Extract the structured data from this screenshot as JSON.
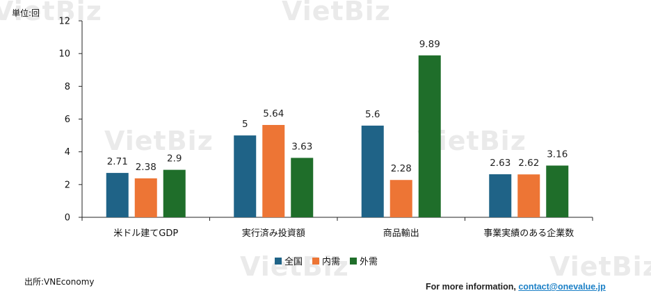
{
  "watermark_text": "VietBiz",
  "unit_label": "単位:回",
  "source_label": "出所:VNEconomy",
  "footer": {
    "prefix": "For more information, ",
    "link": "contact@onevalue.jp"
  },
  "chart_data": {
    "type": "bar",
    "categories": [
      "米ドル建てGDP",
      "実行済み投資額",
      "商品輸出",
      "事業実績のある企業数"
    ],
    "series": [
      {
        "name": "全国",
        "color": "#1f6387",
        "values": [
          2.71,
          5,
          5.6,
          2.63
        ],
        "labels": [
          "2.71",
          "5",
          "5.6",
          "2.63"
        ]
      },
      {
        "name": "内需",
        "color": "#ed7535",
        "values": [
          2.38,
          5.64,
          2.28,
          2.62
        ],
        "labels": [
          "2.38",
          "5.64",
          "2.28",
          "2.62"
        ]
      },
      {
        "name": "外需",
        "color": "#1f6e2a",
        "values": [
          2.9,
          3.63,
          9.89,
          3.16
        ],
        "labels": [
          "2.9",
          "3.63",
          "9.89",
          "3.16"
        ]
      }
    ],
    "ylim": [
      0,
      12
    ],
    "yticks": [
      0,
      2,
      4,
      6,
      8,
      10,
      12
    ],
    "grid": false,
    "legend_position": "bottom"
  }
}
